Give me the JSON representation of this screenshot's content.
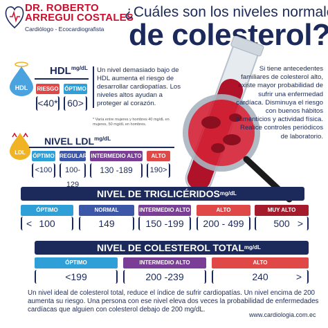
{
  "header": {
    "brand_line1": "DR. ROBERTO",
    "brand_line2": "ARREGUI COSTALES",
    "brand_sub": "Cardiólogo - Ecocardiografista",
    "title_line1": "¿Cuáles son los niveles normales",
    "title_line2": "de colesterol?"
  },
  "hdl": {
    "badge": "HDL",
    "title": "HDL",
    "unit": "mg/dL",
    "labels": [
      "RIESGO",
      "ÓPTIMO"
    ],
    "values": [
      "<40*",
      "60>"
    ],
    "description": "Un nivel demasiado bajo de HDL aumenta el riesgo de desarrollar cardiopatías. Los niveles altos ayudan a proteger al corazón.",
    "note": "* Varía entre mujeres y hombres 40 mg/dL en mujeres, 50 mg/dL en hombres."
  },
  "side_text": "Si tiene antecedentes familiares de colesterol alto, existe mayor probabilidad de sufrir una enfermedad cardíaca. Disminuya el riesgo con buenos hábitos alimenticios y actividad física. Realice controles periódicos de laboratorio.",
  "ldl": {
    "badge": "LDL",
    "title": "NIVEL LDL",
    "unit": "mg/dL",
    "labels": [
      "ÓPTIMO",
      "REGULAR",
      "INTERMEDIO ALTO",
      "ALTO"
    ],
    "values": [
      "<100",
      "100-129",
      "130 -189",
      "190>"
    ]
  },
  "trig": {
    "title": "NIVEL DE TRIGLICÉRIDOS",
    "unit": "mg/dL",
    "labels": [
      "ÓPTIMO",
      "NORMAL",
      "INTERMEDIO ALTO",
      "ALTO",
      "MUY ALTO"
    ],
    "values": [
      "100",
      "149",
      "150 -199",
      "200 - 499",
      "500"
    ]
  },
  "total": {
    "title": "NIVEL DE COLESTEROL TOTAL",
    "unit": "mg/dL",
    "labels": [
      "ÓPTIMO",
      "INTERMEDIO ALTO",
      "ALTO"
    ],
    "values": [
      "<199",
      "200 -239",
      "240"
    ]
  },
  "footer": {
    "text": "Un nivel ideal de colesterol total, reduce el índice de sufrir cardiopatías. Un nivel encima de 200 aumenta su riesgo. Una persona con ese nivel eleva dos veces la probabilidad de enfermedades cardíacas que alguien con colesterol debajo de 200 mg/dL.",
    "url": "www.cardiologia.com.ec"
  },
  "colors": {
    "navy": "#1b2a5a",
    "red": "#c8102e",
    "optimo": "#2f9fd8",
    "normal": "#3c56a8",
    "intermedio": "#7a3e97",
    "alto": "#e04848",
    "muy_alto": "#a41c2c",
    "hdl_drop": "#4aa3df",
    "ldl_drop": "#f0b323"
  }
}
